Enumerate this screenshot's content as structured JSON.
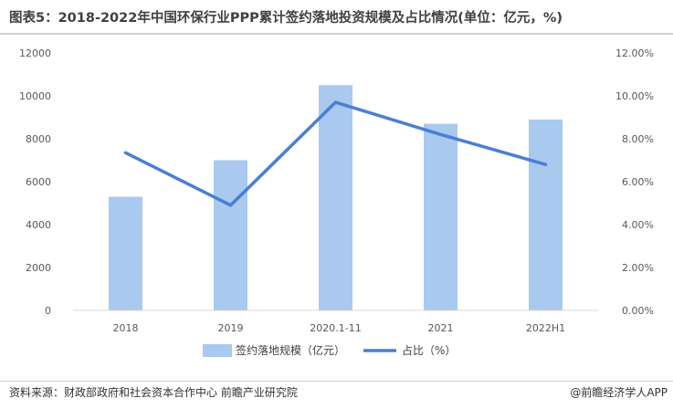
{
  "header": {
    "title": "图表5：2018-2022年中国环保行业PPP累计签约落地投资规模及占比情况(单位：亿元，%)"
  },
  "chart_data": {
    "type": "bar",
    "categories": [
      "2018",
      "2019",
      "2020.1-11",
      "2021",
      "2022H1"
    ],
    "series": [
      {
        "name": "签约落地规模（亿元）",
        "type": "bar",
        "axis": "left",
        "color": "#a9c9ef",
        "values": [
          5300,
          7000,
          10500,
          8700,
          8900
        ]
      },
      {
        "name": "占比（%）",
        "type": "line",
        "axis": "right",
        "color": "#4a7fd4",
        "values": [
          7.35,
          4.9,
          9.7,
          8.2,
          6.8
        ]
      }
    ],
    "y_left": {
      "ylim": [
        0,
        12000
      ],
      "ticks": [
        "0",
        "2000",
        "4000",
        "6000",
        "8000",
        "10000",
        "12000"
      ]
    },
    "y_right": {
      "ylim": [
        0,
        12
      ],
      "ticks": [
        "0.00%",
        "2.00%",
        "4.00%",
        "6.00%",
        "8.00%",
        "10.00%",
        "12.00%"
      ]
    },
    "legend_position": "bottom",
    "grid": false
  },
  "footer": {
    "source": "资料来源：财政部政府和社会资本合作中心 前瞻产业研究院",
    "brand": "@前瞻经济学人APP"
  }
}
